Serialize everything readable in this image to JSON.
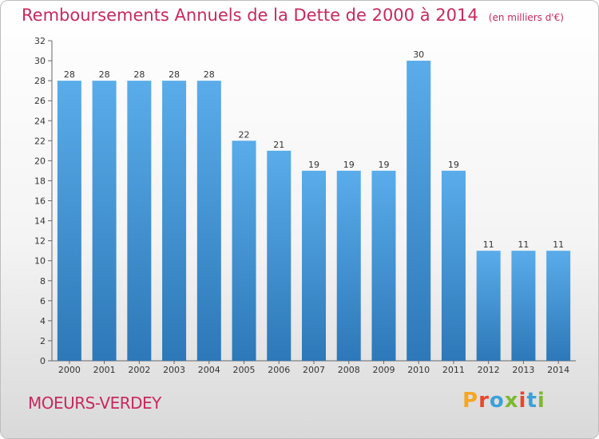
{
  "chart_data": {
    "type": "bar",
    "title": "Remboursements Annuels de la Dette de 2000 à 2014",
    "subtitle": "(en milliers d'€)",
    "categories": [
      "2000",
      "2001",
      "2002",
      "2003",
      "2004",
      "2005",
      "2006",
      "2007",
      "2008",
      "2009",
      "2010",
      "2011",
      "2012",
      "2013",
      "2014"
    ],
    "values": [
      28,
      28,
      28,
      28,
      28,
      22,
      21,
      19,
      19,
      19,
      30,
      19,
      11,
      11,
      11
    ],
    "ylim": [
      0,
      32
    ],
    "yticks": [
      0,
      2,
      4,
      6,
      8,
      10,
      12,
      14,
      16,
      18,
      20,
      22,
      24,
      26,
      28,
      30,
      32
    ],
    "grid": false,
    "legend": "none",
    "bar_color": "#4a9fe0",
    "bar_color_dark": "#2e7bbf"
  },
  "footer": {
    "place": "MOEURS-VERDEY",
    "logo_text": "Proxiti"
  },
  "colors": {
    "title": "#c8285e",
    "logo": [
      "#f5a623",
      "#e8462b",
      "#3aa1d8",
      "#7cb82f",
      "#e8462b",
      "#3aa1d8",
      "#7cb82f"
    ]
  }
}
